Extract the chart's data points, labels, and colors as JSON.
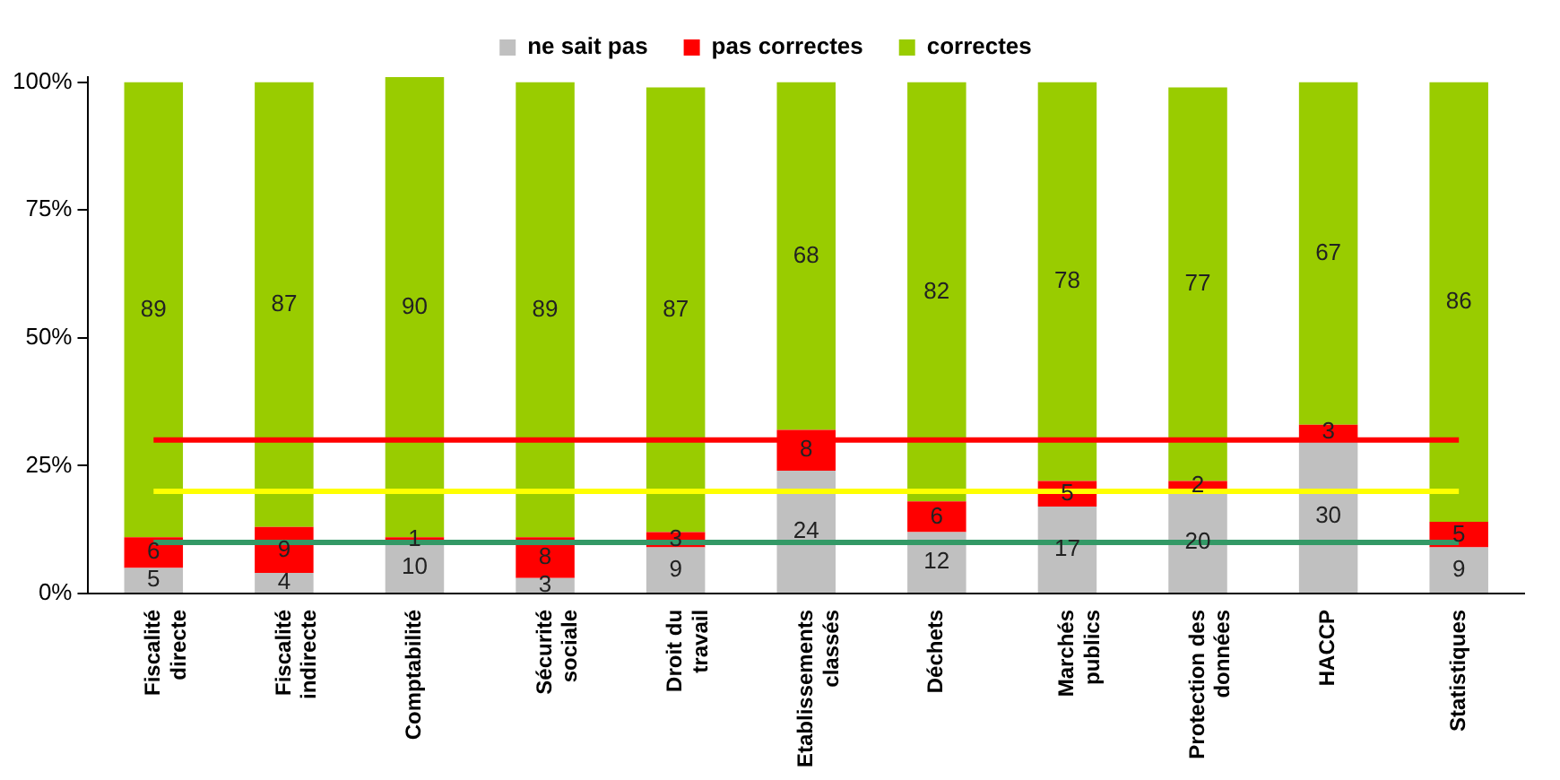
{
  "chart_data": {
    "type": "bar",
    "stacked": true,
    "categories": [
      "Fiscalité directe",
      "Fiscalité indirecte",
      "Comptabilité",
      "Sécurité sociale",
      "Droit du travail",
      "Etablissements classés",
      "Déchets",
      "Marchés publics",
      "Protection des données",
      "HACCP",
      "Statistiques"
    ],
    "series": [
      {
        "name": "ne sait pas",
        "color": "#c0c0c0",
        "values": [
          5,
          4,
          10,
          3,
          9,
          24,
          12,
          17,
          20,
          30,
          9
        ]
      },
      {
        "name": "pas correctes",
        "color": "#ff0000",
        "values": [
          6,
          9,
          1,
          8,
          3,
          8,
          6,
          5,
          2,
          3,
          5
        ]
      },
      {
        "name": "correctes",
        "color": "#99cc00",
        "values": [
          89,
          87,
          90,
          89,
          87,
          68,
          82,
          78,
          77,
          67,
          86
        ]
      }
    ],
    "ylim": [
      0,
      101
    ],
    "yticks": [
      {
        "value": 0,
        "label": "0%"
      },
      {
        "value": 25,
        "label": "25%"
      },
      {
        "value": 50,
        "label": "50%"
      },
      {
        "value": 75,
        "label": "75%"
      },
      {
        "value": 100,
        "label": "100%"
      }
    ],
    "ref_lines": [
      {
        "axis": "y",
        "value": 30,
        "color": "#ff0000"
      },
      {
        "axis": "y",
        "value": 20,
        "color": "#ffff00"
      },
      {
        "axis": "y",
        "value": 10,
        "color": "#339966"
      }
    ],
    "data_labels": true,
    "grid": false,
    "legend": "top"
  }
}
